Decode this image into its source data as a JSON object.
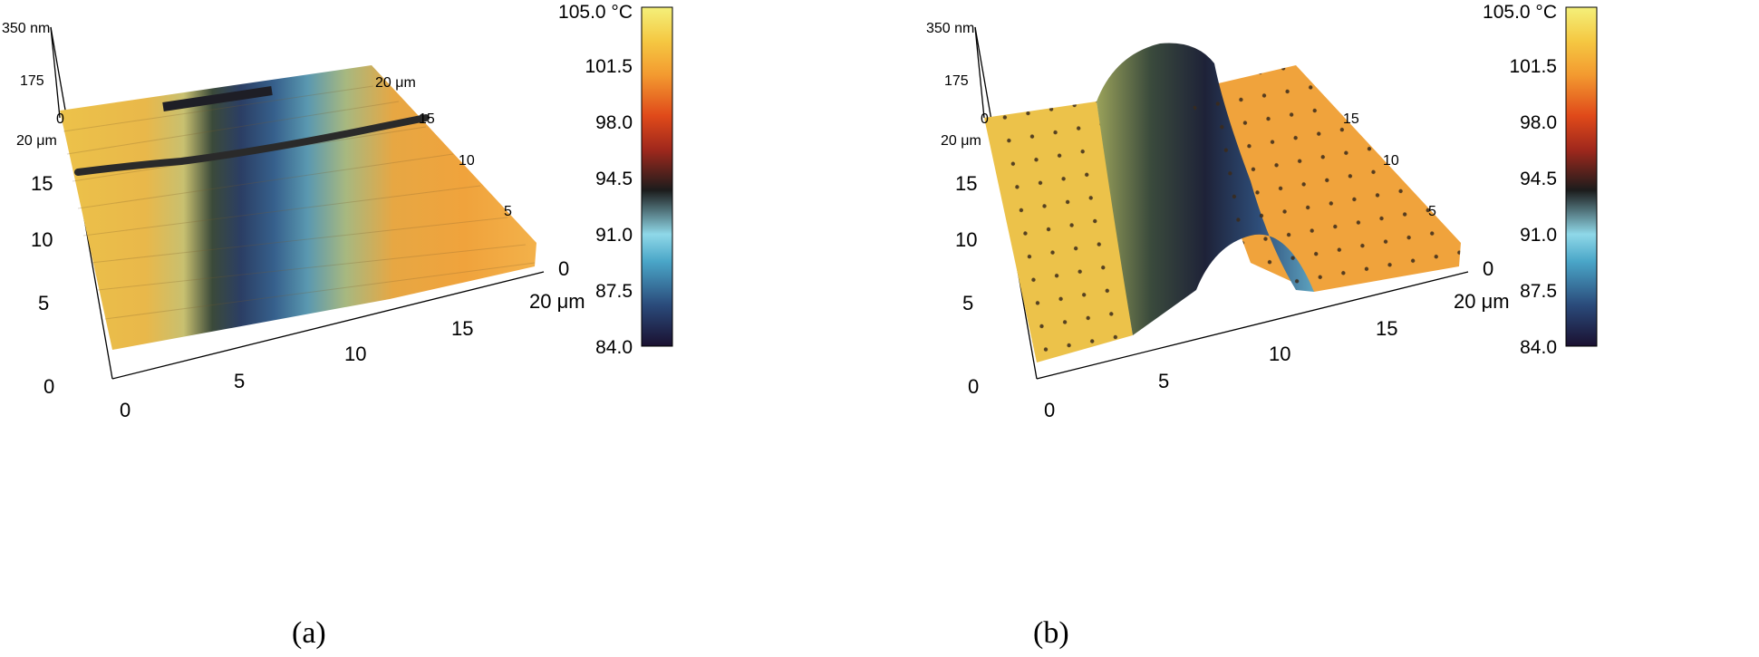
{
  "panels": [
    {
      "id": "a",
      "caption": "(a)",
      "z_ticks": [
        "350 nm",
        "175",
        "0"
      ],
      "y_ticks": [
        "20 μm",
        "15",
        "10",
        "5",
        "0"
      ],
      "x_ticks": [
        "0",
        "5",
        "10",
        "15",
        "20 μm"
      ],
      "back_ticks": [
        "20 μm",
        "15",
        "10",
        "5",
        "0"
      ],
      "colorbar_labels": [
        "105.0 °C",
        "101.5",
        "98.0",
        "94.5",
        "91.0",
        "87.5",
        "84.0"
      ]
    },
    {
      "id": "b",
      "caption": "(b)",
      "z_ticks": [
        "350 nm",
        "175",
        "0"
      ],
      "y_ticks": [
        "20 μm",
        "15",
        "10",
        "5",
        "0"
      ],
      "x_ticks": [
        "0",
        "5",
        "10",
        "15",
        "20 μm"
      ],
      "back_ticks": [
        "15",
        "10",
        "5",
        "0"
      ],
      "colorbar_labels": [
        "105.0 °C",
        "101.5",
        "98.0",
        "94.5",
        "91.0",
        "87.5",
        "84.0"
      ]
    }
  ],
  "colorbar": {
    "min": 84.0,
    "max": 105.0,
    "unit": "°C",
    "stops": [
      "#1a1030",
      "#2a4a7a",
      "#4aa6c8",
      "#8fd8e8",
      "#1c1c1c",
      "#a0281c",
      "#e04a1a",
      "#f39a30",
      "#f5c842",
      "#f4f07a"
    ]
  },
  "colors": {
    "hot": "#f1a93b",
    "warm": "#ecc24a",
    "cool": "#27466f",
    "cold": "#1d1f3a",
    "dark_ridge": "#2a2a2a"
  }
}
